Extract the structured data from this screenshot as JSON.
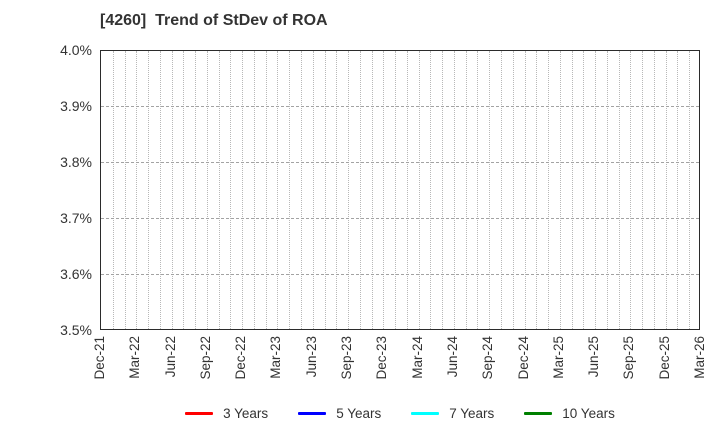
{
  "chart_data": {
    "type": "line",
    "title": "[4260]  Trend of StDev of ROA",
    "xlabel": "",
    "ylabel": "",
    "y_unit": "%",
    "ylim": [
      3.5,
      4.0
    ],
    "y_tick_labels": [
      "4.0%",
      "3.9%",
      "3.8%",
      "3.7%",
      "3.6%",
      "3.5%"
    ],
    "x_tick_labels": [
      "Dec-21",
      "Mar-22",
      "Jun-22",
      "Sep-22",
      "Dec-22",
      "Mar-23",
      "Jun-23",
      "Sep-23",
      "Dec-23",
      "Mar-24",
      "Jun-24",
      "Sep-24",
      "Dec-24",
      "Mar-25",
      "Jun-25",
      "Sep-25",
      "Dec-25",
      "Mar-26"
    ],
    "months_per_tick": 3,
    "grid": true,
    "gridline_style": {
      "vertical": "dotted-monthly",
      "horizontal": "dashed-major"
    },
    "legend_position": "bottom-center",
    "plot_empty": true,
    "series": [
      {
        "name": "3 Years",
        "color": "#ff0000",
        "x": [],
        "values": []
      },
      {
        "name": "5 Years",
        "color": "#0000ff",
        "x": [],
        "values": []
      },
      {
        "name": "7 Years",
        "color": "#00ffff",
        "x": [],
        "values": []
      },
      {
        "name": "10 Years",
        "color": "#008000",
        "x": [],
        "values": []
      }
    ]
  }
}
